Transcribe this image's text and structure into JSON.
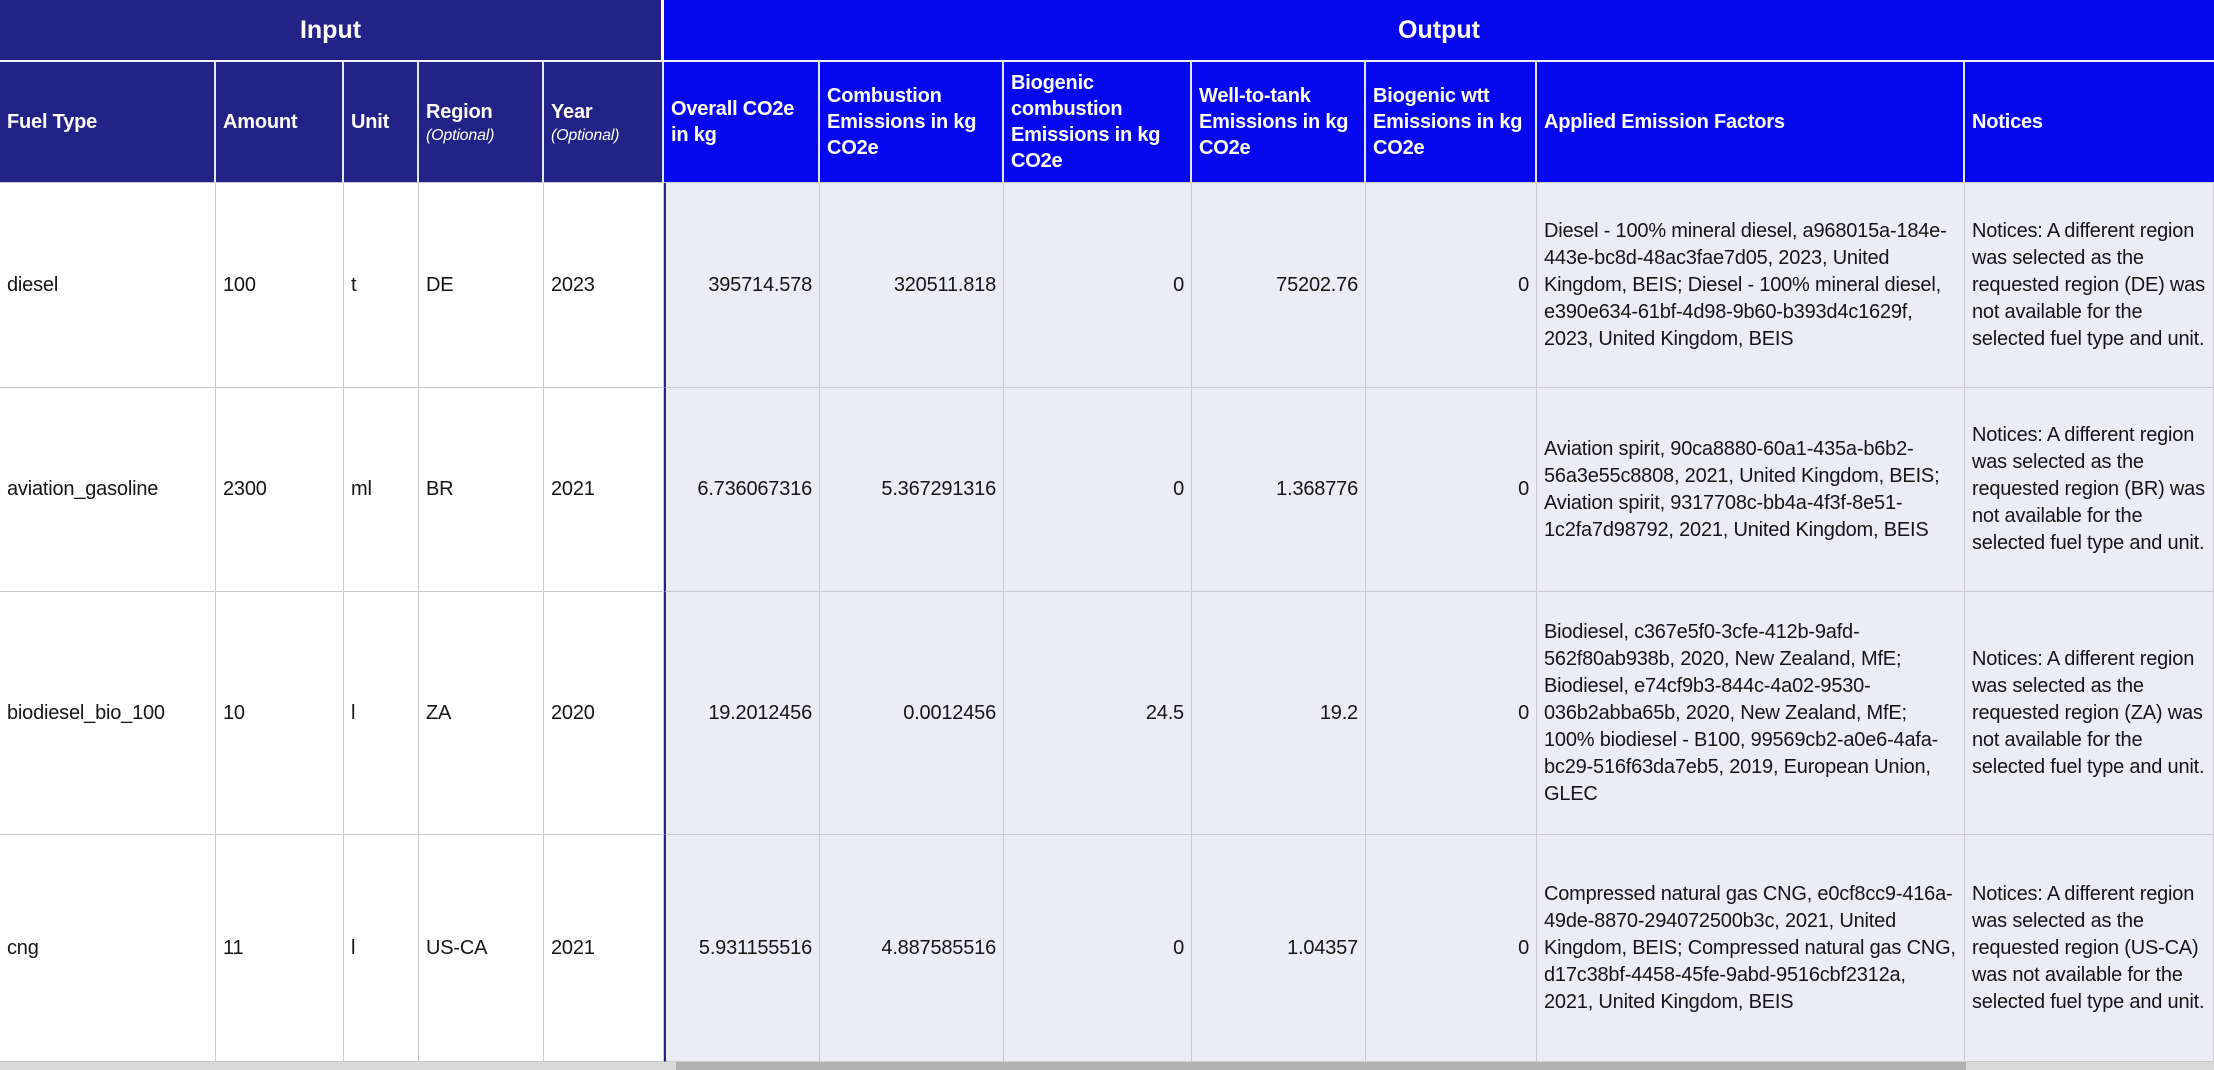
{
  "table": {
    "sections": {
      "input": "Input",
      "output": "Output"
    },
    "columns": [
      {
        "key": "fuel_type",
        "label": "Fuel Type"
      },
      {
        "key": "amount",
        "label": "Amount"
      },
      {
        "key": "unit",
        "label": "Unit"
      },
      {
        "key": "region",
        "label": "Region",
        "note": "(Optional)"
      },
      {
        "key": "year",
        "label": "Year",
        "note": "(Optional)"
      },
      {
        "key": "overall_co2e",
        "label": "Overall CO2e in kg"
      },
      {
        "key": "combustion",
        "label": "Combustion Emissions in kg CO2e"
      },
      {
        "key": "biogenic_combustion",
        "label": "Biogenic combustion Emissions in kg CO2e"
      },
      {
        "key": "wtt",
        "label": "Well-to-tank Emissions in kg CO2e"
      },
      {
        "key": "biogenic_wtt",
        "label": "Biogenic wtt Emissions in kg CO2e"
      },
      {
        "key": "factors",
        "label": "Applied Emission Factors"
      },
      {
        "key": "notices",
        "label": "Notices"
      }
    ],
    "rows": [
      {
        "fuel_type": "diesel",
        "amount": "100",
        "unit": "t",
        "region": "DE",
        "year": "2023",
        "overall_co2e": "395714.578",
        "combustion": "320511.818",
        "biogenic_combustion": "0",
        "wtt": "75202.76",
        "biogenic_wtt": "0",
        "factors": "Diesel - 100% mineral diesel, a968015a-184e-443e-bc8d-48ac3fae7d05, 2023, United Kingdom, BEIS; Diesel - 100% mineral diesel, e390e634-61bf-4d98-9b60-b393d4c1629f, 2023, United Kingdom, BEIS",
        "notices": "Notices: A different region was selected as the requested region (DE) was not available for the selected fuel type and unit."
      },
      {
        "fuel_type": "aviation_gasoline",
        "amount": "2300",
        "unit": "ml",
        "region": "BR",
        "year": "2021",
        "overall_co2e": "6.736067316",
        "combustion": "5.367291316",
        "biogenic_combustion": "0",
        "wtt": "1.368776",
        "biogenic_wtt": "0",
        "factors": "Aviation spirit, 90ca8880-60a1-435a-b6b2-56a3e55c8808, 2021, United Kingdom, BEIS; Aviation spirit, 9317708c-bb4a-4f3f-8e51-1c2fa7d98792, 2021, United Kingdom, BEIS",
        "notices": "Notices: A different region was selected as the requested region (BR) was not available for the selected fuel type and unit."
      },
      {
        "fuel_type": "biodiesel_bio_100",
        "amount": "10",
        "unit": "l",
        "region": "ZA",
        "year": "2020",
        "overall_co2e": "19.2012456",
        "combustion": "0.0012456",
        "biogenic_combustion": "24.5",
        "wtt": "19.2",
        "biogenic_wtt": "0",
        "factors": "Biodiesel, c367e5f0-3cfe-412b-9afd-562f80ab938b, 2020, New Zealand, MfE; Biodiesel, e74cf9b3-844c-4a02-9530-036b2abba65b, 2020, New Zealand, MfE; 100% biodiesel - B100, 99569cb2-a0e6-4afa-bc29-516f63da7eb5, 2019, European Union, GLEC",
        "notices": "Notices: A different region was selected as the requested region (ZA) was not available for the selected fuel type and unit."
      },
      {
        "fuel_type": "cng",
        "amount": "11",
        "unit": "l",
        "region": "US-CA",
        "year": "2021",
        "overall_co2e": "5.931155516",
        "combustion": "4.887585516",
        "biogenic_combustion": "0",
        "wtt": "1.04357",
        "biogenic_wtt": "0",
        "factors": "Compressed natural gas CNG, e0cf8cc9-416a-49de-8870-294072500b3c, 2021, United Kingdom, BEIS; Compressed natural gas CNG, d17c38bf-4458-45fe-9abd-9516cbf2312a, 2021, United Kingdom, BEIS",
        "notices": "Notices: A different region was selected as the requested region (US-CA) was not available for the selected fuel type and unit."
      }
    ]
  },
  "colors": {
    "input_header_bg": "#232387",
    "output_header_bg": "#0808EE",
    "output_cell_bg": "#ECECF7",
    "gridline": "#C9C9CE",
    "scrollbar_thumb": "#B2B2B2"
  }
}
